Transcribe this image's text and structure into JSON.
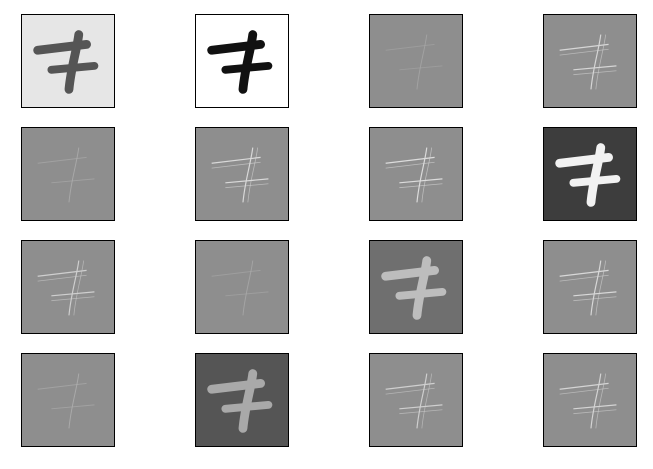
{
  "figure": {
    "rows": 4,
    "cols": 4,
    "panels": [
      {
        "id": "p1",
        "bg": "#e6e6e6",
        "mode": "solid",
        "stroke": "#555555"
      },
      {
        "id": "p2",
        "bg": "#ffffff",
        "mode": "solid",
        "stroke": "#111111"
      },
      {
        "id": "p3",
        "bg": "#8e8e8e",
        "mode": "faint",
        "stroke": "#a8a8a8"
      },
      {
        "id": "p4",
        "bg": "#8e8e8e",
        "mode": "edge",
        "stroke": "#d6d6d6"
      },
      {
        "id": "p5",
        "bg": "#8e8e8e",
        "mode": "faint",
        "stroke": "#b0b0b0"
      },
      {
        "id": "p6",
        "bg": "#8e8e8e",
        "mode": "edge",
        "stroke": "#d9d9d9"
      },
      {
        "id": "p7",
        "bg": "#8e8e8e",
        "mode": "edge",
        "stroke": "#dcdcdc"
      },
      {
        "id": "p8",
        "bg": "#3d3d3d",
        "mode": "solid",
        "stroke": "#f2f2f2"
      },
      {
        "id": "p9",
        "bg": "#8e8e8e",
        "mode": "edge",
        "stroke": "#cfcfcf"
      },
      {
        "id": "p10",
        "bg": "#8e8e8e",
        "mode": "faint",
        "stroke": "#ababab"
      },
      {
        "id": "p11",
        "bg": "#6f6f6f",
        "mode": "solid",
        "stroke": "#bdbdbd"
      },
      {
        "id": "p12",
        "bg": "#8e8e8e",
        "mode": "edge",
        "stroke": "#d8d8d8"
      },
      {
        "id": "p13",
        "bg": "#8e8e8e",
        "mode": "faint",
        "stroke": "#b3b3b3"
      },
      {
        "id": "p14",
        "bg": "#555555",
        "mode": "solid",
        "stroke": "#a9a9a9"
      },
      {
        "id": "p15",
        "bg": "#8e8e8e",
        "mode": "edge",
        "stroke": "#cfcfcf"
      },
      {
        "id": "p16",
        "bg": "#8e8e8e",
        "mode": "edge",
        "stroke": "#d4d4d4"
      }
    ]
  }
}
